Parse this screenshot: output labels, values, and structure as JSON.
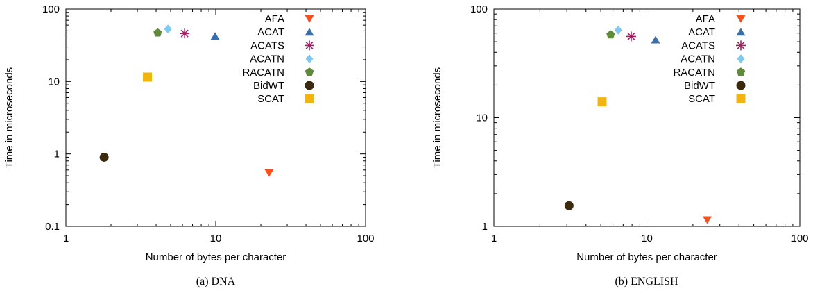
{
  "chart_data": [
    {
      "type": "scatter",
      "caption": "(a) DNA",
      "xlabel": "Number of bytes per character",
      "ylabel": "Time in microseconds",
      "xscale": "log",
      "yscale": "log",
      "xlim": [
        1,
        100
      ],
      "ylim": [
        0.1,
        100
      ],
      "xticks": [
        1,
        10,
        100
      ],
      "xtick_labels": [
        "1",
        "10",
        "100"
      ],
      "yticks": [
        0.1,
        1,
        10,
        100
      ],
      "ytick_labels": [
        "0.1",
        "1",
        "10",
        "100"
      ],
      "legend_position": "top-right",
      "series": [
        {
          "name": "AFA",
          "marker": "triangle-down",
          "color": "#f4511e",
          "x": 22.7,
          "y": 0.55
        },
        {
          "name": "ACAT",
          "marker": "triangle-up",
          "color": "#3a6eaa",
          "x": 9.9,
          "y": 42
        },
        {
          "name": "ACATS",
          "marker": "asterisk",
          "color": "#a02060",
          "x": 6.2,
          "y": 46
        },
        {
          "name": "ACATN",
          "marker": "diamond",
          "color": "#7fc8f0",
          "x": 4.8,
          "y": 53
        },
        {
          "name": "RACATN",
          "marker": "pentagon",
          "color": "#5e8a3a",
          "x": 4.1,
          "y": 47
        },
        {
          "name": "BidWT",
          "marker": "circle",
          "color": "#3b2a0d",
          "x": 1.8,
          "y": 0.9
        },
        {
          "name": "SCAT",
          "marker": "square",
          "color": "#f2b50e",
          "x": 3.5,
          "y": 11.5
        }
      ]
    },
    {
      "type": "scatter",
      "caption": "(b) ENGLISH",
      "xlabel": "Number of bytes per character",
      "ylabel": "Time in microseconds",
      "xscale": "log",
      "yscale": "log",
      "xlim": [
        1,
        100
      ],
      "ylim": [
        1,
        100
      ],
      "xticks": [
        1,
        10,
        100
      ],
      "xtick_labels": [
        "1",
        "10",
        "100"
      ],
      "yticks": [
        1,
        10,
        100
      ],
      "ytick_labels": [
        "1",
        "10",
        "100"
      ],
      "legend_position": "top-right",
      "series": [
        {
          "name": "AFA",
          "marker": "triangle-down",
          "color": "#f4511e",
          "x": 24.8,
          "y": 1.15
        },
        {
          "name": "ACAT",
          "marker": "triangle-up",
          "color": "#3a6eaa",
          "x": 11.4,
          "y": 52
        },
        {
          "name": "ACATS",
          "marker": "asterisk",
          "color": "#a02060",
          "x": 7.9,
          "y": 56
        },
        {
          "name": "ACATN",
          "marker": "diamond",
          "color": "#7fc8f0",
          "x": 6.5,
          "y": 64
        },
        {
          "name": "RACATN",
          "marker": "pentagon",
          "color": "#5e8a3a",
          "x": 5.8,
          "y": 58
        },
        {
          "name": "BidWT",
          "marker": "circle",
          "color": "#3b2a0d",
          "x": 3.1,
          "y": 1.55
        },
        {
          "name": "SCAT",
          "marker": "square",
          "color": "#f2b50e",
          "x": 5.1,
          "y": 14
        }
      ]
    }
  ]
}
